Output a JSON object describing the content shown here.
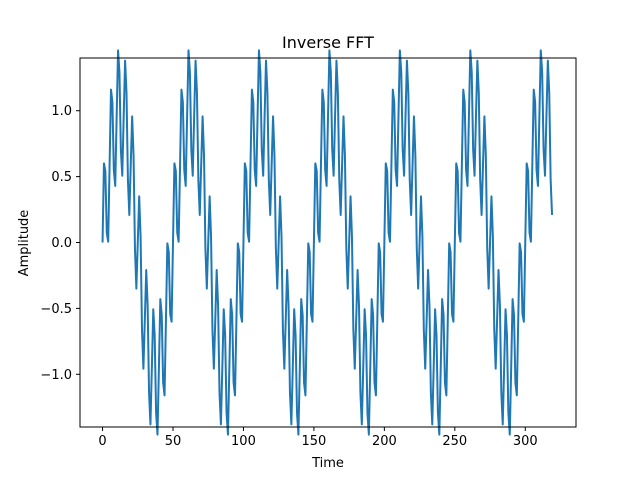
{
  "chart_data": {
    "type": "line",
    "title": "Inverse FFT",
    "xlabel": "Time",
    "ylabel": "Amplitude",
    "xlim": [
      -16,
      336
    ],
    "ylim": [
      -1.4,
      1.4
    ],
    "xticks": [
      0,
      50,
      100,
      150,
      200,
      250,
      300
    ],
    "yticks": [
      1.0,
      0.5,
      0.0,
      -0.5,
      -1.0
    ],
    "ytick_labels": [
      "1.0",
      "0.5",
      "0.0",
      "−0.5",
      "−1.0"
    ],
    "grid": false,
    "series": [
      {
        "color": "#1f77b4",
        "components": [
          {
            "amplitude": 1.0,
            "cycles_per_sample": 0.02
          },
          {
            "amplitude": 0.5,
            "cycles_per_sample": 0.2
          }
        ],
        "x_start": 0,
        "x_end": 319
      }
    ]
  }
}
